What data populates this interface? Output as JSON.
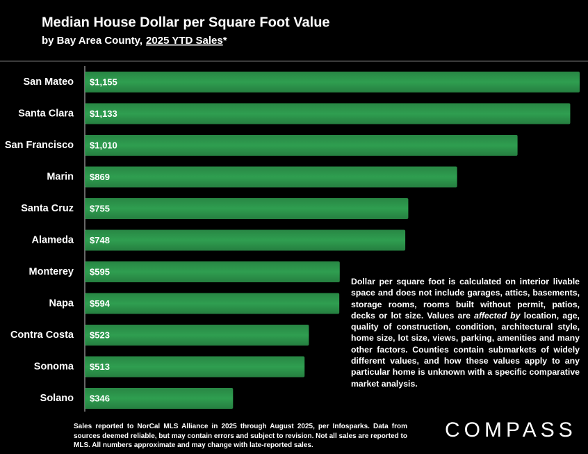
{
  "chart_data": {
    "type": "bar",
    "orientation": "horizontal",
    "title": "Median House Dollar per Square Foot Value",
    "subtitle": [
      "by Bay Area County,",
      "2025 YTD Sales",
      "*"
    ],
    "categories": [
      "San Mateo",
      "Santa Clara",
      "San Francisco",
      "Marin",
      "Santa Cruz",
      "Alameda",
      "Monterey",
      "Napa",
      "Contra Costa",
      "Sonoma",
      "Solano"
    ],
    "values": [
      1155,
      1133,
      1010,
      869,
      755,
      748,
      595,
      594,
      523,
      513,
      346
    ],
    "value_labels": [
      "$1,155",
      "$1,133",
      "$1,010",
      "$869",
      "$755",
      "$748",
      "$595",
      "$594",
      "$523",
      "$513",
      "$346"
    ],
    "color": "#2f9e50",
    "note": [
      "Dollar per square foot is calculated on interior livable space and does not include garages, attics, basements, storage rooms, rooms built without permit, patios, decks or lot size. Values are",
      "affected by",
      "location, age, quality of construction, condition, architectural style, home size, lot size, views, parking, amenities and many other factors. Counties contain submarkets of widely different values, and how these values apply to any particular home is unknown with a specific comparative market analysis."
    ],
    "footnote": "Sales reported to NorCal MLS Alliance in 2025 through August 2025, per Infosparks. Data from sources deemed reliable, but may contain errors and subject to revision. Not all sales are reported to MLS. All numbers approximate and may change with late-reported sales.",
    "logo": "COMPASS"
  }
}
